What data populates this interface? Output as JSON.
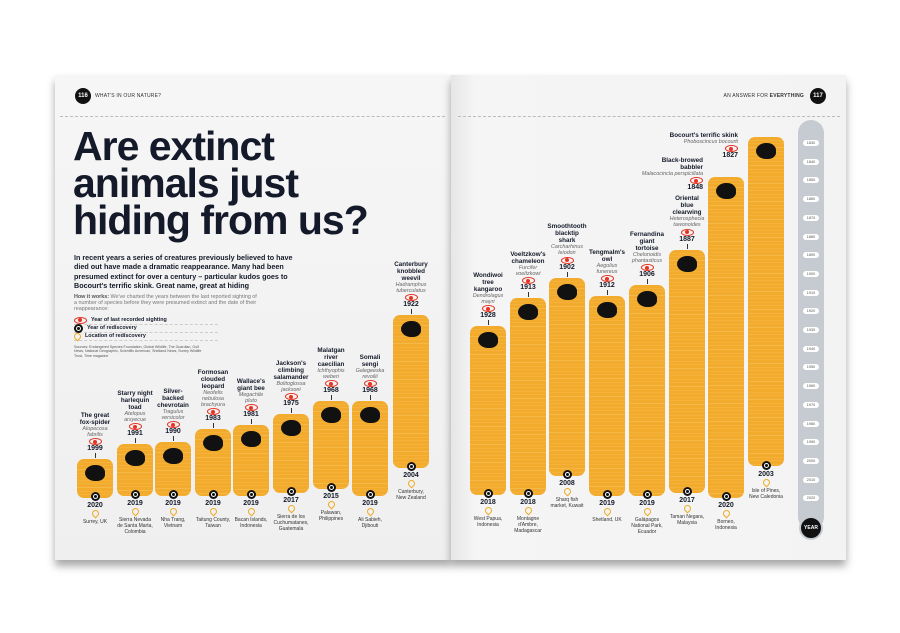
{
  "header_left": {
    "page_number": "116",
    "section": "WHAT'S IN OUR NATURE?"
  },
  "header_right": {
    "page_number": "117",
    "section_prefix": "AN ANSWER FOR ",
    "section_bold": "EVERYTHING"
  },
  "title_lines": [
    "Are extinct",
    "animals just",
    "hiding from us?"
  ],
  "intro": "In recent years a series of creatures previously believed to have died out have made a dramatic reappearance. Many had been presumed extinct for over a century – particular kudos goes to Bocourt's terrific skink. Great name, great at hiding",
  "how_label": "How it works:",
  "how_text": " We've charted the years between the last reported sighting of a number of species before they were presumed extinct and the date of their reappearance:",
  "legend": [
    {
      "icon": "eye-icon",
      "label": "Year of last recorded sighting"
    },
    {
      "icon": "magnifier-icon",
      "label": "Year of rediscovery"
    },
    {
      "icon": "location-pin-icon",
      "label": "Location of rediscovery"
    }
  ],
  "sources": "Sources: Endangered Species Foundation, Global Wildlife, The Guardian, Gulf News, National Geographic, Scientific American, Shetland News, Surrey Wildlife Trust, Time magazine",
  "colors": {
    "bar": "#f2ab2c",
    "accent_red": "#e63323",
    "ink": "#141a2a",
    "axis": "#c5cbd1"
  },
  "chart_data": {
    "type": "bar",
    "axis_label": "YEAR",
    "ylim": [
      1830,
      2020
    ],
    "ticks": [
      1830,
      1840,
      1850,
      1860,
      1870,
      1880,
      1890,
      1900,
      1910,
      1920,
      1930,
      1940,
      1950,
      1960,
      1970,
      1980,
      1990,
      2000,
      2010,
      2020
    ],
    "species": [
      {
        "name": "The great fox-spider",
        "latin": "Alopecosa fabrilis",
        "last_seen": 1999,
        "rediscovered": 2020,
        "location": "Surrey, UK"
      },
      {
        "name": "Starry night harlequin toad",
        "latin": "Atelopus arsyecue",
        "last_seen": 1991,
        "rediscovered": 2019,
        "location": "Sierra Nevada de Santa Marta, Colombia"
      },
      {
        "name": "Silver-backed chevrotain",
        "latin": "Tragulus versicolor",
        "last_seen": 1990,
        "rediscovered": 2019,
        "location": "Nha Trang, Vietnam"
      },
      {
        "name": "Formosan clouded leopard",
        "latin": "Neofelis nebulosa brachyura",
        "last_seen": 1983,
        "rediscovered": 2019,
        "location": "Taitung County, Taiwan"
      },
      {
        "name": "Wallace's giant bee",
        "latin": "Megachile pluto",
        "last_seen": 1981,
        "rediscovered": 2019,
        "location": "Bacan Islands, Indonesia"
      },
      {
        "name": "Jackson's climbing salamander",
        "latin": "Bolitoglossa jacksoni",
        "last_seen": 1975,
        "rediscovered": 2017,
        "location": "Sierra de los Cuchumatanes, Guatemala"
      },
      {
        "name": "Malatgan river caecilian",
        "latin": "Ichthyophis weberi",
        "last_seen": 1968,
        "rediscovered": 2015,
        "location": "Palawan, Philippines"
      },
      {
        "name": "Somali sengi",
        "latin": "Galegeeska revoilii",
        "last_seen": 1968,
        "rediscovered": 2019,
        "location": "Ali Sabieh, Djibouti"
      },
      {
        "name": "Canterbury knobbled weevil",
        "latin": "Hadramphus tuberculatus",
        "last_seen": 1922,
        "rediscovered": 2004,
        "location": "Canterbury, New Zealand"
      },
      {
        "name": "Wondiwoi tree kangaroo",
        "latin": "Dendrolagus mayri",
        "last_seen": 1928,
        "rediscovered": 2018,
        "location": "West Papua, Indonesia"
      },
      {
        "name": "Voeltzkow's chameleon",
        "latin": "Furcifer voeltzkowi",
        "last_seen": 1913,
        "rediscovered": 2018,
        "location": "Montagne d'Ambre, Madagascar"
      },
      {
        "name": "Smoothtooth blacktip shark",
        "latin": "Carcharhinus leiodon",
        "last_seen": 1902,
        "rediscovered": 2008,
        "location": "Sharq fish market, Kuwait"
      },
      {
        "name": "Tengmalm's owl",
        "latin": "Aegolius funereus",
        "last_seen": 1912,
        "rediscovered": 2019,
        "location": "Shetland, UK"
      },
      {
        "name": "Fernandina giant tortoise",
        "latin": "Chelonoidis phantasticus",
        "last_seen": 1906,
        "rediscovered": 2019,
        "location": "Galápagos National Park, Ecuador"
      },
      {
        "name": "Oriental blue clearwing",
        "latin": "Heterosphecia tawonoides",
        "last_seen": 1887,
        "rediscovered": 2017,
        "location": "Taman Negara, Malaysia"
      },
      {
        "name": "Black-browed babbler",
        "latin": "Malacocincla perspicillata",
        "last_seen": 1848,
        "rediscovered": 2020,
        "location": "Borneo, Indonesia"
      },
      {
        "name": "Bocourt's terrific skink",
        "latin": "Phoboscincus bocourti",
        "last_seen": 1827,
        "rediscovered": 2003,
        "location": "Isle of Pines, New Caledonia"
      }
    ]
  }
}
